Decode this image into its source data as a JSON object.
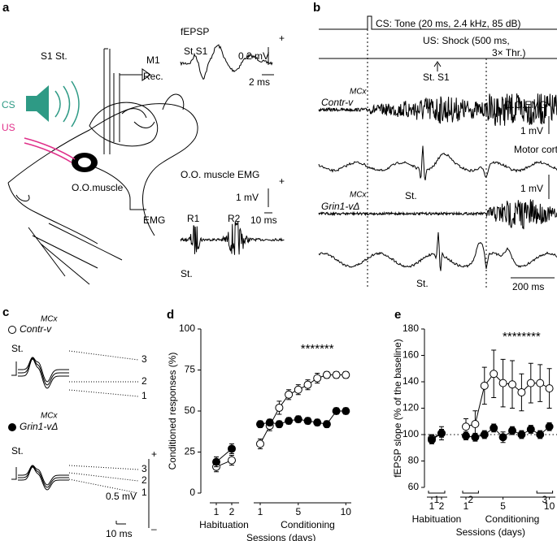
{
  "panel_a": {
    "label": "a",
    "fepsp": "fEPSP",
    "st_s1": "St.S1",
    "fepsp_mv": "0.2 mV",
    "fepsp_ms": "2 ms",
    "fepsp_plus": "+",
    "s1_st": "S1 St.",
    "m1": "M1",
    "rec": "Rec.",
    "cs": "CS",
    "us": "US",
    "muscle": "O.O.muscle",
    "emg": "EMG",
    "emg_title": "O.O. muscle EMG",
    "emg_plus": "+",
    "emg_mv": "1 mV",
    "emg_ms": "10 ms",
    "r1": "R1",
    "r2": "R2",
    "st": "St."
  },
  "panel_b": {
    "label": "b",
    "cs": "CS: Tone (20 ms, 2.4 kHz, 85 dB)",
    "us_1": "US: Shock (500 ms,",
    "us_2": "3× Thr.)",
    "st_s1": "St. S1",
    "contr": "Contr-v",
    "contr_sup": "MCx",
    "oo_emg": "O.O.EMG",
    "mv_1": "1 mV",
    "motor": "Motor cortex",
    "st_1": "St.",
    "mv_2": "1 mV",
    "grin": "Grin1-vΔ",
    "grin_sup": "MCx",
    "st_2": "St.",
    "ms": "200 ms"
  },
  "panel_c": {
    "label": "c",
    "contr": "Contr-v",
    "contr_sup": "MCx",
    "st_1": "St.",
    "n3a": "3",
    "n2a": "2",
    "n1a": "1",
    "grin": "Grin1-vΔ",
    "grin_sup": "MCx",
    "st_2": "St.",
    "n3b": "3",
    "n2b": "2",
    "n1b": "1",
    "mv": "0.5 mV",
    "plus": "+",
    "minus": "–",
    "ms": "10 ms"
  },
  "chart_data": [
    {
      "type": "line",
      "panel_label": "d",
      "ylabel": "Conditioned responses (%)",
      "xlabel": "Sessions (days)",
      "groups": [
        "Habituation",
        "Conditioning"
      ],
      "categories": [
        "1",
        "2",
        "1",
        null,
        null,
        null,
        "5",
        null,
        null,
        null,
        null,
        "10"
      ],
      "ylim": [
        0,
        100
      ],
      "yticks": [
        0,
        25,
        50,
        75,
        100
      ],
      "annotation": "*******",
      "series": [
        {
          "color": "#ffffff",
          "values": [
            16,
            20,
            30,
            41,
            52,
            60,
            63,
            66,
            70,
            72,
            72,
            72
          ],
          "errors": [
            3,
            3,
            3,
            3,
            4,
            3,
            3,
            3,
            3,
            2,
            2,
            2
          ]
        },
        {
          "color": "#000000",
          "values": [
            19,
            27,
            42,
            43,
            42,
            44,
            45,
            44,
            43,
            42,
            50,
            50
          ],
          "errors": [
            3,
            3,
            2,
            2,
            2,
            2,
            2,
            2,
            2,
            2,
            2,
            2
          ]
        }
      ]
    },
    {
      "type": "line",
      "panel_label": "e",
      "ylabel": "fEPSP slope (% of the baseline)",
      "xlabel": "Sessions (days)",
      "groups": [
        "Habituation",
        "Conditioning"
      ],
      "categories": [
        "1",
        "2",
        "1",
        null,
        null,
        null,
        "5",
        null,
        null,
        null,
        null,
        "10"
      ],
      "ylim": [
        60,
        180
      ],
      "yticks": [
        60,
        80,
        100,
        120,
        140,
        160,
        180
      ],
      "annotation": "********",
      "reference_line": 100,
      "brackets": [
        "1",
        "2",
        "3"
      ],
      "series": [
        {
          "color": "#ffffff",
          "values": [
            97,
            101,
            106,
            108,
            137,
            146,
            139,
            138,
            132,
            139,
            139,
            135
          ],
          "errors": [
            3,
            5,
            6,
            10,
            14,
            18,
            18,
            18,
            14,
            15,
            14,
            15
          ]
        },
        {
          "color": "#000000",
          "values": [
            96,
            101,
            99,
            98,
            100,
            105,
            98,
            103,
            100,
            104,
            100,
            106
          ],
          "errors": [
            3,
            3,
            3,
            3,
            3,
            3,
            4,
            3,
            3,
            3,
            3,
            3
          ]
        }
      ]
    }
  ]
}
